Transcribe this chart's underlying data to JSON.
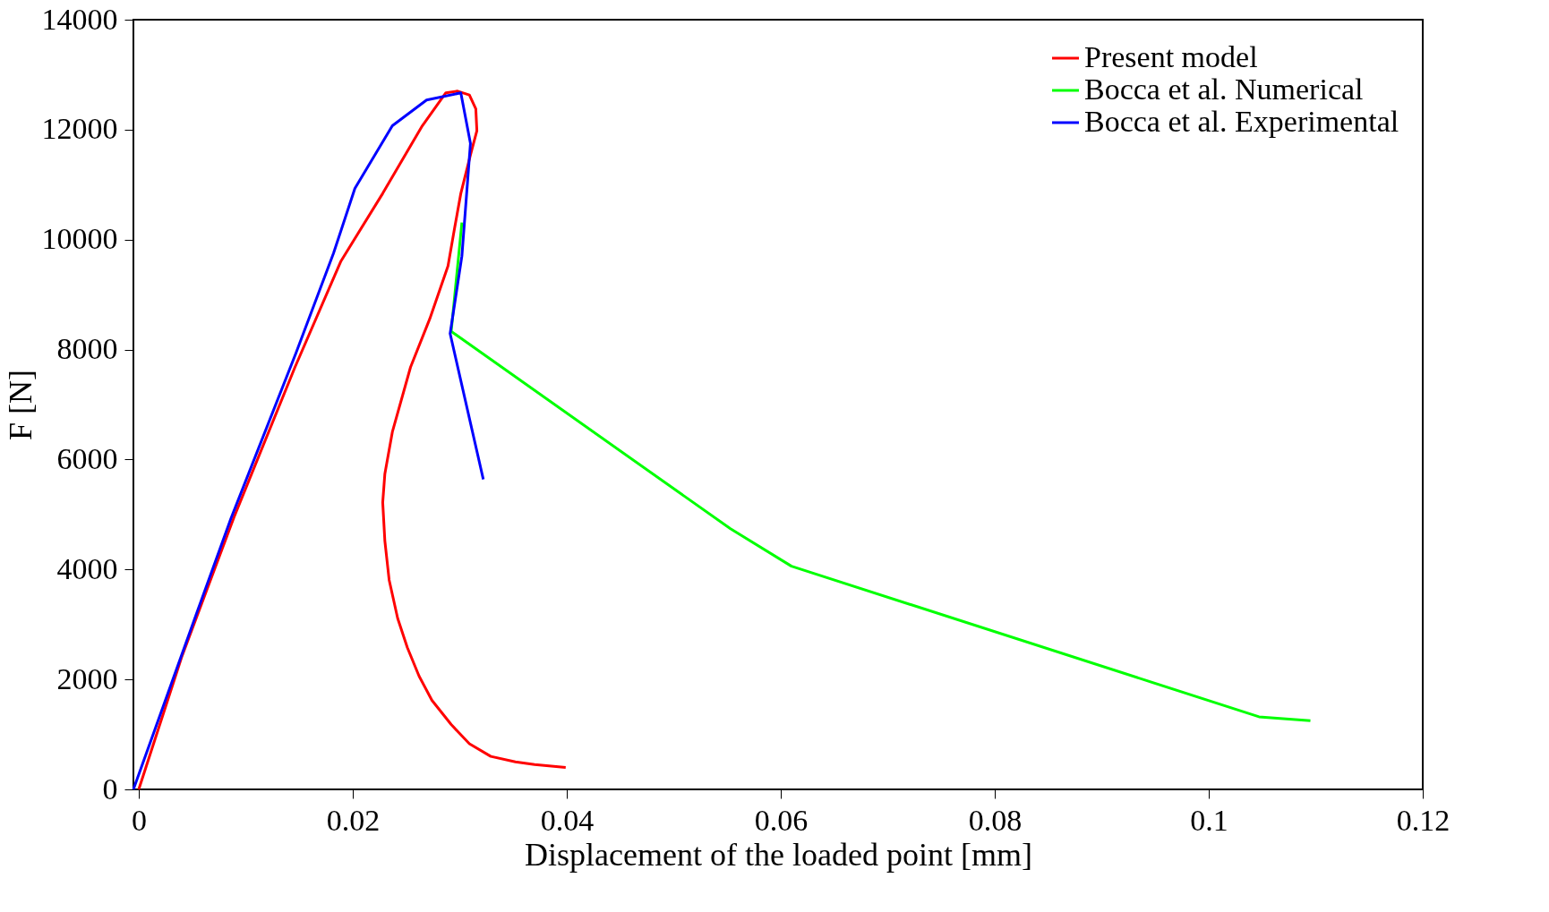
{
  "chart_data": {
    "type": "line",
    "xlabel": "Displacement of the loaded point [mm]",
    "ylabel": "F [N]",
    "xlim": [
      -0.0005,
      0.12
    ],
    "ylim": [
      0,
      14000
    ],
    "xticks": [
      0,
      0.02,
      0.04,
      0.06,
      0.08,
      0.1,
      0.12
    ],
    "yticks": [
      0,
      2000,
      4000,
      6000,
      8000,
      10000,
      12000,
      14000
    ],
    "grid": false,
    "legend": "top right",
    "line_style": "solid",
    "marker": "none",
    "series": [
      {
        "name": "Present model",
        "color": "#ff0000",
        "x": [
          0,
          0.004,
          0.0089,
          0.0146,
          0.0189,
          0.0228,
          0.0265,
          0.0287,
          0.0298,
          0.0309,
          0.0315,
          0.0316,
          0.031,
          0.0301,
          0.0295,
          0.0289,
          0.0272,
          0.0254,
          0.0237,
          0.023,
          0.0228,
          0.023,
          0.0234,
          0.0242,
          0.0251,
          0.0262,
          0.0274,
          0.0292,
          0.0309,
          0.0329,
          0.0352,
          0.037,
          0.0399
        ],
        "values": [
          0,
          2400,
          4950,
          7680,
          9610,
          10840,
          12070,
          12670,
          12700,
          12630,
          12380,
          11980,
          11540,
          10840,
          10190,
          9520,
          8560,
          7680,
          6500,
          5740,
          5220,
          4520,
          3810,
          3110,
          2580,
          2060,
          1620,
          1180,
          830,
          600,
          500,
          450,
          400
        ]
      },
      {
        "name": "Bocca et al. Numerical",
        "color": "#00ff00",
        "x": [
          0.0302,
          0.0292,
          0.0553,
          0.061,
          0.1047,
          0.1095
        ],
        "values": [
          10310,
          8330,
          4740,
          4060,
          1320,
          1250
        ]
      },
      {
        "name": "Bocca et al. Experimental",
        "color": "#0000ff",
        "x": [
          -0.0005,
          0.0054,
          0.0086,
          0.0147,
          0.0182,
          0.0202,
          0.0237,
          0.0269,
          0.0301,
          0.031,
          0.0302,
          0.0291,
          0.0322
        ],
        "values": [
          0,
          3200,
          4920,
          7940,
          9750,
          10930,
          12070,
          12540,
          12670,
          11750,
          9700,
          8290,
          5640
        ]
      }
    ]
  }
}
